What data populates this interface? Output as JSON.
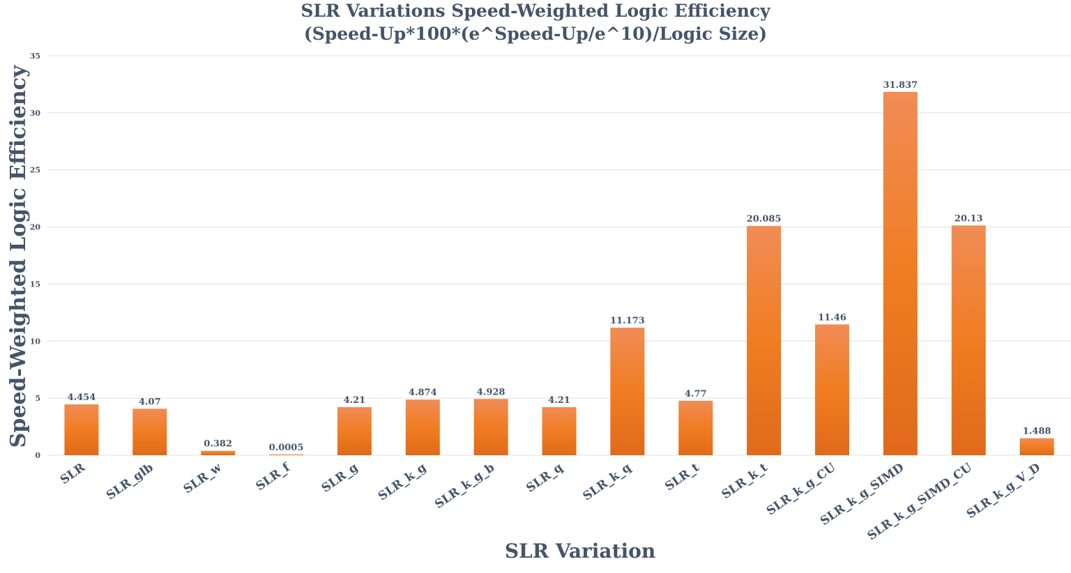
{
  "chart_data": {
    "type": "bar",
    "title_line1": "SLR Variations Speed-Weighted Logic Efficiency",
    "title_line2": "(Speed-Up*100*(e^Speed-Up/e^10)/Logic Size)",
    "xlabel": "SLR Variation",
    "ylabel": "Speed-Weighted Logic Efficiency",
    "categories": [
      "SLR",
      "SLR_glb",
      "SLR_w",
      "SLR_f",
      "SLR_g",
      "SLR_k_g",
      "SLR_k_g_b",
      "SLR_q",
      "SLR_k_q",
      "SLR_t",
      "SLR_k_t",
      "SLR_k_g_CU",
      "SLR_k_g_SIMD",
      "SLR_k_g_SIMD_CU",
      "SLR_k_g_V_D"
    ],
    "values": [
      4.454,
      4.07,
      0.382,
      0.0005,
      4.21,
      4.874,
      4.928,
      4.21,
      11.173,
      4.77,
      20.085,
      11.46,
      31.837,
      20.13,
      1.488
    ],
    "data_labels": [
      "4.454",
      "4.07",
      "0.382",
      "0.0005",
      "4.21",
      "4.874",
      "4.928",
      "4.21",
      "11.173",
      "4.77",
      "20.085",
      "11.46",
      "31.837",
      "20.13",
      "1.488"
    ],
    "yticks": [
      0,
      5,
      10,
      15,
      20,
      25,
      30,
      35
    ],
    "ylim": [
      0,
      35
    ],
    "grid": true,
    "legend": "none",
    "colors": {
      "bar_top": "#f08c55",
      "bar_mid": "#f07d22",
      "bar_bottom": "#e06a1a",
      "text": "#44546a",
      "grid": "#e0e0e0"
    }
  }
}
